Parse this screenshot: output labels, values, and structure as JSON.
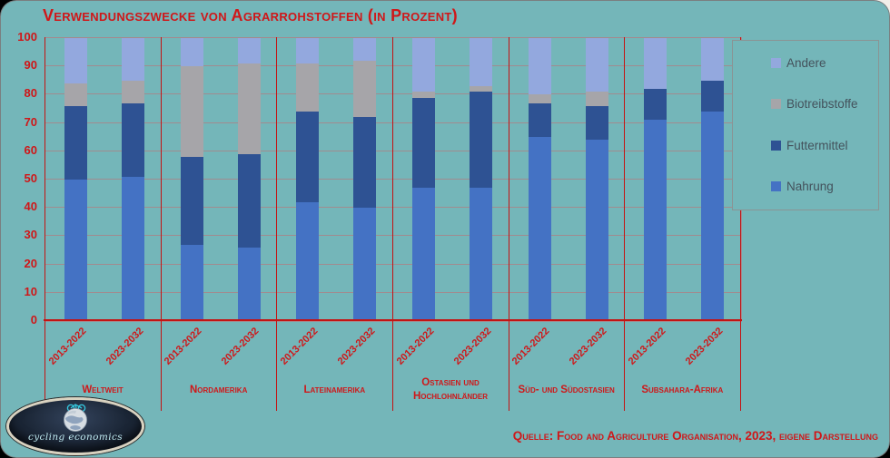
{
  "theme": {
    "background": "#74b6b9",
    "accent_red": "#cf1719",
    "axis_red": "#c41313",
    "gridline": "#a18b8f",
    "legend_text": "#44525c",
    "legend_border": "#8a9494",
    "logo_background": "#1b2636"
  },
  "chart_data": {
    "type": "stacked-bar",
    "title": "Verwendungszwecke von Agrarrohstoffen (in Prozent)",
    "ylim": [
      0,
      100
    ],
    "yticks": [
      0,
      10,
      20,
      30,
      40,
      50,
      60,
      70,
      80,
      90,
      100
    ],
    "grid": true,
    "legend_position": "right",
    "groups": [
      "Weltweit",
      "Nordamerika",
      "Lateinamerika",
      "Ostasien und Hochlohnländer",
      "Süd- und Südostasien",
      "Subsahara-Afrika"
    ],
    "periods": [
      "2013-2022",
      "2023-2032"
    ],
    "series": [
      {
        "name": "Nahrung",
        "color": "#4472c4",
        "values": [
          50,
          51,
          27,
          26,
          42,
          40,
          47,
          47,
          65,
          64,
          71,
          74
        ]
      },
      {
        "name": "Futtermittel",
        "color": "#2e5293",
        "values": [
          26,
          26,
          31,
          33,
          32,
          32,
          32,
          34,
          12,
          12,
          11,
          11
        ]
      },
      {
        "name": "Biotreibstoffe",
        "color": "#a6a5a9",
        "values": [
          8,
          8,
          32,
          32,
          17,
          20,
          2,
          2,
          3,
          5,
          0,
          0
        ]
      },
      {
        "name": "Andere",
        "color": "#93a8de",
        "values": [
          16,
          15,
          10,
          9,
          9,
          8,
          19,
          17,
          20,
          19,
          18,
          15
        ]
      }
    ],
    "legend": [
      "Andere",
      "Biotreibstoffe",
      "Futtermittel",
      "Nahrung"
    ],
    "source": "Quelle: Food and Agriculture Organisation, 2023, eigene Darstellung"
  },
  "logo": {
    "text": "cycling economics"
  }
}
